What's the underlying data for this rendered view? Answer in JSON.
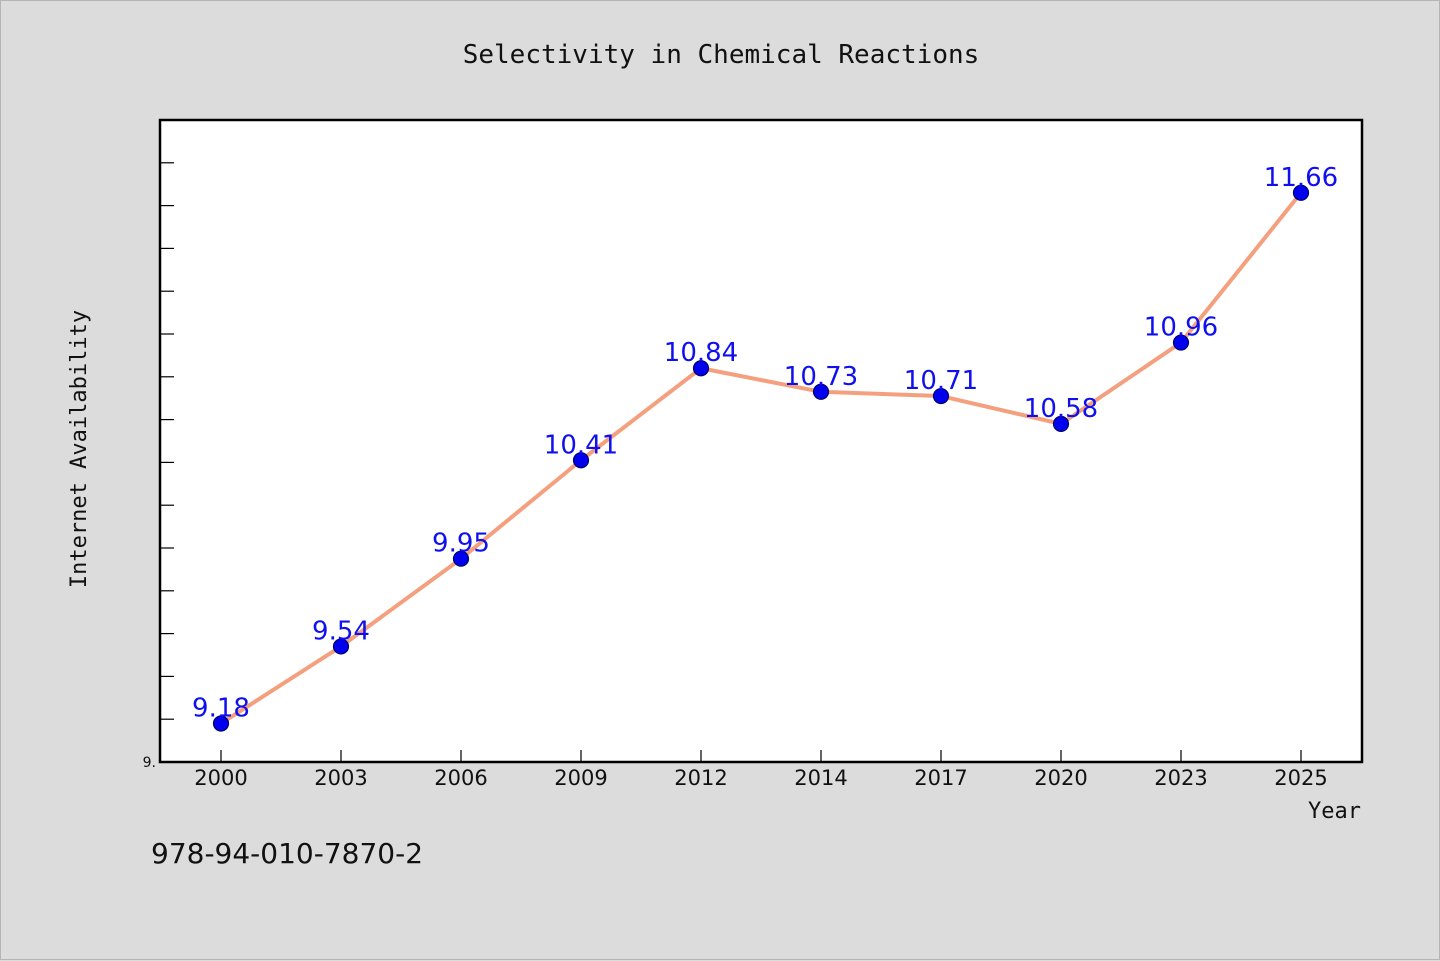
{
  "chart_data": {
    "type": "line",
    "title": "Selectivity in Chemical Reactions",
    "xlabel": "Year",
    "ylabel": "Internet Availability",
    "categories": [
      "2000",
      "2003",
      "2006",
      "2009",
      "2012",
      "2014",
      "2017",
      "2020",
      "2023",
      "2025"
    ],
    "series": [
      {
        "values": [
          9.18,
          9.54,
          9.95,
          10.41,
          10.84,
          10.73,
          10.71,
          10.58,
          10.96,
          11.66
        ],
        "line_color": "#f4a07e",
        "marker_color": "#0000ee"
      }
    ],
    "data_labels": [
      "9.18",
      "9.54",
      "9.95",
      "10.41",
      "10.84",
      "10.73",
      "10.71",
      "10.58",
      "10.96",
      "11.66"
    ],
    "ylim": [
      9.0,
      12.0
    ],
    "y_tick_labels": [
      "9."
    ],
    "grid": false,
    "legend": "none"
  },
  "footer": {
    "code": "978-94-010-7870-2"
  },
  "colors": {
    "background": "#dcdcdc",
    "plot_background": "#ffffff",
    "label": "#1010ee"
  }
}
